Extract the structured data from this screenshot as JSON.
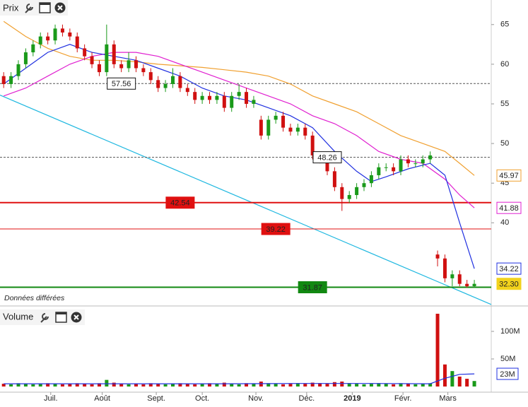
{
  "chart_data": [
    {
      "type": "candlestick",
      "title": "Prix",
      "note": "Données différées",
      "xlim": [
        -0.5,
        66.3
      ],
      "ylim": [
        29.6,
        68.1
      ],
      "yticks": [
        40,
        45,
        50,
        55,
        60,
        65
      ],
      "up_color": "#1a9a1a",
      "down_color": "#d01010",
      "open": [
        58.5,
        57.5,
        58.5,
        60,
        61.5,
        62.5,
        63.5,
        63,
        64.5,
        64,
        63.5,
        62,
        61,
        60,
        59,
        62.5,
        60,
        59.5,
        60.5,
        59.5,
        59,
        58,
        57,
        57.5,
        58.5,
        57,
        56.5,
        55.5,
        56,
        55.5,
        56,
        54.5,
        56,
        56.5,
        55,
        53,
        51,
        53,
        53.5,
        52,
        51.5,
        52,
        51,
        48.5,
        48,
        46.5,
        44.5,
        43,
        43.5,
        44.5,
        45,
        46,
        47,
        47,
        46.5,
        48,
        47.5,
        47.5,
        48,
        36,
        35.5,
        33,
        33.5,
        32.3,
        32
      ],
      "high": [
        59,
        59,
        60.5,
        62,
        63,
        64,
        64,
        65,
        65,
        64.5,
        64,
        62.5,
        61.5,
        60.5,
        65,
        63,
        60.5,
        61.5,
        61,
        60,
        59.5,
        58.5,
        58,
        59.5,
        59,
        57.5,
        57,
        56.5,
        56.5,
        56.5,
        56.5,
        56.5,
        57.5,
        57,
        56,
        53.5,
        53.5,
        54,
        54,
        52.5,
        52.5,
        52.5,
        51.5,
        49,
        48.5,
        47,
        45,
        44,
        45,
        45.5,
        46.5,
        47.5,
        47.5,
        47.5,
        48.5,
        48.5,
        48,
        48.5,
        49,
        36.5,
        36,
        34,
        34,
        32.8,
        32.8
      ],
      "low": [
        57,
        57,
        58,
        59.5,
        61,
        62,
        62.5,
        62.5,
        63.5,
        63,
        61.5,
        60.5,
        59.5,
        58.5,
        58.5,
        59.5,
        59,
        59,
        59,
        58.5,
        57.5,
        56.5,
        56.5,
        57,
        56.5,
        56,
        55,
        55,
        55,
        55,
        54,
        54,
        55.5,
        54.5,
        54.5,
        50.5,
        50.5,
        52.5,
        51.5,
        51,
        51,
        50.5,
        48,
        47.5,
        46,
        44,
        41.5,
        42.5,
        43,
        44,
        44.5,
        45.5,
        46.5,
        46,
        46,
        47,
        47,
        47,
        47.5,
        34.5,
        32.5,
        32,
        32,
        31.8,
        31.8
      ],
      "close": [
        57.5,
        58.5,
        60,
        61.5,
        62.5,
        63.5,
        63,
        64.5,
        64,
        63.5,
        62,
        61,
        60,
        59,
        62.5,
        60,
        59.5,
        60.5,
        59.5,
        59,
        58,
        57,
        57.5,
        58.5,
        57,
        56.5,
        55.5,
        56,
        55.5,
        56,
        54.5,
        56,
        56.5,
        55,
        55.5,
        51,
        53,
        53.5,
        52,
        51.5,
        52,
        51,
        48.5,
        48,
        46.5,
        44.5,
        43,
        43.5,
        44.5,
        45,
        46,
        47,
        47,
        46.5,
        48,
        47.5,
        47.5,
        48,
        48.5,
        35.5,
        33,
        33.5,
        32.3,
        32,
        32.3
      ],
      "last_label": "32.30",
      "last_color": "#f2d21c",
      "lines": [
        {
          "color": "#f0a030",
          "x": [
            0,
            3,
            6,
            9,
            12,
            15,
            18,
            21,
            24,
            27,
            30,
            33,
            36,
            39,
            42,
            45,
            48,
            51,
            54,
            57,
            60,
            62,
            64
          ],
          "values": [
            65.4,
            63.5,
            62,
            61,
            60.5,
            60.5,
            60.3,
            60,
            59.8,
            59.6,
            59.3,
            59,
            58.5,
            57.5,
            56,
            55,
            54,
            52.5,
            51,
            50,
            49,
            47.5,
            45.97
          ]
        },
        {
          "color": "#e020d0",
          "x": [
            0,
            3,
            6,
            9,
            12,
            15,
            18,
            21,
            24,
            27,
            30,
            33,
            36,
            39,
            42,
            45,
            48,
            51,
            54,
            57,
            60,
            62,
            64
          ],
          "values": [
            56,
            57,
            58.5,
            60,
            61,
            61.5,
            61.5,
            61,
            60,
            59,
            58,
            57,
            56,
            55,
            53.5,
            52.5,
            51,
            49,
            48,
            47.5,
            45.5,
            43.5,
            41.88
          ]
        },
        {
          "color": "#2030e0",
          "x": [
            0,
            3,
            6,
            9,
            12,
            15,
            18,
            21,
            24,
            27,
            30,
            33,
            36,
            39,
            42,
            45,
            48,
            50,
            52,
            55,
            58,
            60,
            62,
            64
          ],
          "values": [
            57.5,
            59.5,
            61.5,
            62.5,
            61.5,
            61,
            60.5,
            59.5,
            58.5,
            57,
            56,
            55.5,
            54.5,
            53.5,
            52,
            49,
            46.5,
            45.2,
            45.8,
            46.8,
            47.5,
            46,
            40,
            34.22
          ]
        }
      ],
      "trendline": {
        "color": "#20b8e0",
        "x": [
          -0.5,
          66.3
        ],
        "values": [
          56.1,
          29.7
        ]
      },
      "levels": [
        {
          "value": 57.56,
          "color": "#555555",
          "style": "dashed",
          "box": "#ffffff",
          "label_x": 16
        },
        {
          "value": 48.26,
          "color": "#555555",
          "style": "dashed",
          "box": "#ffffff",
          "label_x": 44
        },
        {
          "value": 42.54,
          "color": "#e01010",
          "style": "solid",
          "box": "#e01010",
          "label_x": 24
        },
        {
          "value": 39.22,
          "color": "#e01010",
          "style": "thin",
          "box": "#e01010",
          "label_x": 37
        },
        {
          "value": 31.87,
          "color": "#118811",
          "style": "solid",
          "box": "#118811",
          "label_x": 42
        }
      ]
    },
    {
      "type": "bar",
      "title": "Volume",
      "xlim": [
        -0.5,
        66.3
      ],
      "ylim": [
        0,
        141
      ],
      "yticks": [
        {
          "value": 50,
          "label": "50M"
        },
        {
          "value": 100,
          "label": "100M"
        }
      ],
      "xticks": [
        {
          "value": 6.4,
          "label": "Juil."
        },
        {
          "value": 13.4,
          "label": "Août"
        },
        {
          "value": 20.75,
          "label": "Sept."
        },
        {
          "value": 27,
          "label": "Oct."
        },
        {
          "value": 34.3,
          "label": "Nov."
        },
        {
          "value": 41.2,
          "label": "Déc."
        },
        {
          "value": 47.4,
          "label": "2019"
        },
        {
          "value": 54.3,
          "label": "Févr."
        },
        {
          "value": 60.4,
          "label": "Mars"
        }
      ],
      "values": [
        5,
        4,
        6,
        5,
        4,
        5,
        6,
        5,
        4,
        5,
        6,
        5,
        4,
        6,
        12,
        7,
        5,
        4,
        5,
        4,
        6,
        5,
        4,
        5,
        6,
        5,
        4,
        5,
        6,
        5,
        7,
        5,
        4,
        6,
        5,
        9,
        6,
        5,
        4,
        5,
        6,
        5,
        7,
        6,
        5,
        8,
        9,
        6,
        5,
        4,
        5,
        6,
        5,
        4,
        6,
        5,
        4,
        5,
        6,
        132,
        40,
        28,
        18,
        14,
        10
      ],
      "ma": {
        "color": "#2030e0",
        "x": [
          0,
          10,
          20,
          30,
          40,
          50,
          58,
          60,
          62,
          64
        ],
        "values": [
          5,
          5,
          5,
          5,
          5.5,
          5.5,
          5,
          15,
          22,
          23
        ],
        "last_label": "23M"
      }
    }
  ]
}
